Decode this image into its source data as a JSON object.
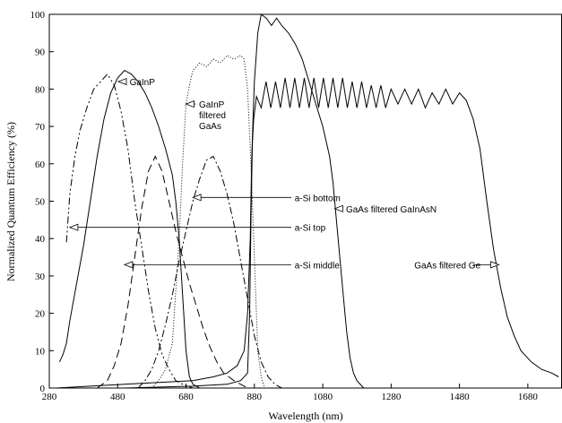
{
  "chart_data": {
    "type": "line",
    "title": "",
    "xlabel": "Wavelength (nm)",
    "ylabel": "Normalized Quantum Efficiency (%)",
    "xlim": [
      280,
      1780
    ],
    "ylim": [
      0,
      100
    ],
    "x_ticks": [
      280,
      480,
      680,
      880,
      1080,
      1280,
      1480,
      1680
    ],
    "y_ticks": [
      0,
      10,
      20,
      30,
      40,
      50,
      60,
      70,
      80,
      90,
      100
    ],
    "grid": false,
    "series": [
      {
        "name": "a-Si top",
        "style": "dashdotdot",
        "points": [
          [
            330,
            39
          ],
          [
            340,
            52
          ],
          [
            355,
            62
          ],
          [
            370,
            69
          ],
          [
            390,
            75
          ],
          [
            410,
            80
          ],
          [
            430,
            82
          ],
          [
            450,
            84
          ],
          [
            470,
            81
          ],
          [
            490,
            74
          ],
          [
            510,
            64
          ],
          [
            530,
            50
          ],
          [
            550,
            38
          ],
          [
            570,
            26
          ],
          [
            590,
            16
          ],
          [
            610,
            9
          ],
          [
            630,
            5
          ],
          [
            650,
            2
          ],
          [
            670,
            1
          ],
          [
            700,
            0
          ]
        ]
      },
      {
        "name": "a-Si middle",
        "style": "dashed",
        "points": [
          [
            420,
            0
          ],
          [
            450,
            2
          ],
          [
            470,
            6
          ],
          [
            490,
            12
          ],
          [
            510,
            22
          ],
          [
            530,
            35
          ],
          [
            550,
            48
          ],
          [
            570,
            58
          ],
          [
            590,
            62
          ],
          [
            610,
            58
          ],
          [
            630,
            50
          ],
          [
            650,
            42
          ],
          [
            670,
            35
          ],
          [
            690,
            28
          ],
          [
            710,
            22
          ],
          [
            730,
            16
          ],
          [
            750,
            11
          ],
          [
            770,
            7
          ],
          [
            790,
            4
          ],
          [
            820,
            2
          ],
          [
            860,
            0
          ]
        ]
      },
      {
        "name": "a-Si bottom",
        "style": "dashdot",
        "points": [
          [
            540,
            0
          ],
          [
            560,
            2
          ],
          [
            580,
            5
          ],
          [
            600,
            10
          ],
          [
            620,
            17
          ],
          [
            640,
            25
          ],
          [
            660,
            34
          ],
          [
            680,
            42
          ],
          [
            700,
            50
          ],
          [
            720,
            56
          ],
          [
            740,
            61
          ],
          [
            760,
            62
          ],
          [
            780,
            58
          ],
          [
            800,
            52
          ],
          [
            820,
            44
          ],
          [
            840,
            34
          ],
          [
            860,
            24
          ],
          [
            880,
            14
          ],
          [
            900,
            7
          ],
          [
            920,
            3
          ],
          [
            940,
            1
          ],
          [
            960,
            0
          ]
        ]
      },
      {
        "name": "GaInP",
        "style": "solid",
        "points": [
          [
            310,
            7
          ],
          [
            320,
            9
          ],
          [
            330,
            12
          ],
          [
            340,
            18
          ],
          [
            360,
            28
          ],
          [
            380,
            38
          ],
          [
            400,
            50
          ],
          [
            420,
            62
          ],
          [
            440,
            72
          ],
          [
            460,
            79
          ],
          [
            480,
            83
          ],
          [
            500,
            85
          ],
          [
            520,
            84
          ],
          [
            540,
            82
          ],
          [
            560,
            79
          ],
          [
            580,
            75
          ],
          [
            600,
            70
          ],
          [
            620,
            64
          ],
          [
            640,
            57
          ],
          [
            650,
            50
          ],
          [
            660,
            40
          ],
          [
            670,
            25
          ],
          [
            680,
            10
          ],
          [
            690,
            3
          ],
          [
            700,
            1
          ],
          [
            720,
            0
          ]
        ]
      },
      {
        "name": "GaInP filtered GaAs",
        "style": "dotted",
        "points": [
          [
            580,
            0
          ],
          [
            600,
            2
          ],
          [
            620,
            5
          ],
          [
            640,
            12
          ],
          [
            660,
            40
          ],
          [
            670,
            60
          ],
          [
            680,
            76
          ],
          [
            690,
            81
          ],
          [
            700,
            85
          ],
          [
            720,
            87
          ],
          [
            740,
            86
          ],
          [
            760,
            88
          ],
          [
            780,
            87
          ],
          [
            800,
            89
          ],
          [
            820,
            88
          ],
          [
            840,
            89
          ],
          [
            850,
            88
          ],
          [
            860,
            80
          ],
          [
            870,
            60
          ],
          [
            880,
            35
          ],
          [
            890,
            10
          ],
          [
            900,
            3
          ],
          [
            910,
            0
          ]
        ]
      },
      {
        "name": "GaAs filtered GaInAsN",
        "style": "solid",
        "points": [
          [
            300,
            0
          ],
          [
            400,
            0.5
          ],
          [
            500,
            1
          ],
          [
            600,
            1.5
          ],
          [
            700,
            2
          ],
          [
            760,
            3
          ],
          [
            800,
            4
          ],
          [
            830,
            6
          ],
          [
            850,
            10
          ],
          [
            860,
            20
          ],
          [
            868,
            40
          ],
          [
            872,
            60
          ],
          [
            876,
            72
          ],
          [
            880,
            82
          ],
          [
            890,
            95
          ],
          [
            900,
            100
          ],
          [
            915,
            99
          ],
          [
            930,
            97
          ],
          [
            945,
            99
          ],
          [
            960,
            97
          ],
          [
            980,
            95
          ],
          [
            1000,
            92
          ],
          [
            1020,
            88
          ],
          [
            1040,
            82
          ],
          [
            1060,
            76
          ],
          [
            1080,
            70
          ],
          [
            1100,
            62
          ],
          [
            1110,
            55
          ],
          [
            1120,
            45
          ],
          [
            1130,
            35
          ],
          [
            1140,
            25
          ],
          [
            1150,
            15
          ],
          [
            1160,
            8
          ],
          [
            1170,
            4
          ],
          [
            1180,
            2
          ],
          [
            1200,
            0
          ]
        ]
      },
      {
        "name": "GaAs filtered Ge",
        "style": "solid",
        "points": [
          [
            280,
            0
          ],
          [
            500,
            0
          ],
          [
            700,
            0.5
          ],
          [
            800,
            1
          ],
          [
            840,
            2
          ],
          [
            860,
            4
          ],
          [
            866,
            20
          ],
          [
            870,
            45
          ],
          [
            874,
            65
          ],
          [
            878,
            72
          ],
          [
            886,
            78
          ],
          [
            900,
            75
          ],
          [
            914,
            82
          ],
          [
            928,
            75
          ],
          [
            942,
            82
          ],
          [
            956,
            75
          ],
          [
            970,
            83
          ],
          [
            984,
            75
          ],
          [
            998,
            83
          ],
          [
            1012,
            75
          ],
          [
            1026,
            83
          ],
          [
            1040,
            75
          ],
          [
            1054,
            83
          ],
          [
            1068,
            75
          ],
          [
            1082,
            83
          ],
          [
            1096,
            75
          ],
          [
            1110,
            83
          ],
          [
            1124,
            75
          ],
          [
            1138,
            83
          ],
          [
            1152,
            75
          ],
          [
            1166,
            82
          ],
          [
            1180,
            75
          ],
          [
            1194,
            82
          ],
          [
            1208,
            75
          ],
          [
            1222,
            81
          ],
          [
            1236,
            75
          ],
          [
            1250,
            81
          ],
          [
            1264,
            75
          ],
          [
            1280,
            80
          ],
          [
            1300,
            76
          ],
          [
            1320,
            80
          ],
          [
            1340,
            76
          ],
          [
            1360,
            80
          ],
          [
            1380,
            75
          ],
          [
            1400,
            79
          ],
          [
            1420,
            76
          ],
          [
            1440,
            80
          ],
          [
            1460,
            76
          ],
          [
            1480,
            79
          ],
          [
            1500,
            77
          ],
          [
            1520,
            72
          ],
          [
            1540,
            64
          ],
          [
            1560,
            50
          ],
          [
            1580,
            37
          ],
          [
            1600,
            27
          ],
          [
            1620,
            19
          ],
          [
            1640,
            14
          ],
          [
            1660,
            10
          ],
          [
            1690,
            7
          ],
          [
            1720,
            5
          ],
          [
            1750,
            4
          ],
          [
            1770,
            3
          ]
        ]
      }
    ],
    "annotations": [
      {
        "id": "label-gainp",
        "lines": [
          "GaInP"
        ]
      },
      {
        "id": "label-gainp-filtered-gaas",
        "lines": [
          "GaInP",
          "filtered",
          "GaAs"
        ]
      },
      {
        "id": "label-asi-bottom",
        "lines": [
          "a-Si bottom"
        ]
      },
      {
        "id": "label-asi-top",
        "lines": [
          "a-Si top"
        ]
      },
      {
        "id": "label-asi-middle",
        "lines": [
          "a-Si middle"
        ]
      },
      {
        "id": "label-gaas-filtered-gainasn",
        "lines": [
          "GaAs filtered GaInAsN"
        ]
      },
      {
        "id": "label-gaas-filtered-ge",
        "lines": [
          "GaAs filtered Ge"
        ]
      }
    ]
  }
}
